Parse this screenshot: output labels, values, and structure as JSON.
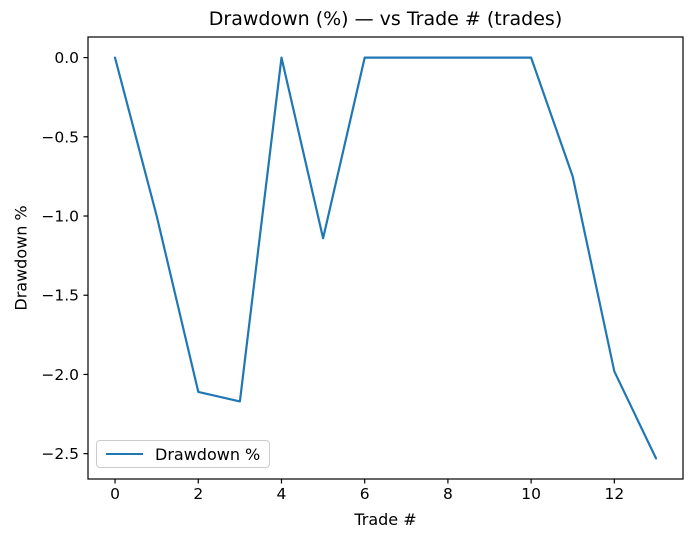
{
  "chart_data": {
    "type": "line",
    "title": "Drawdown (%) — vs Trade # (trades)",
    "xlabel": "Trade #",
    "ylabel": "Drawdown %",
    "x": [
      0,
      1,
      2,
      3,
      4,
      5,
      6,
      7,
      8,
      9,
      10,
      11,
      12,
      13
    ],
    "series": [
      {
        "name": "Drawdown %",
        "color": "#1f77b4",
        "values": [
          0.0,
          -1.0,
          -2.11,
          -2.17,
          0.0,
          -1.14,
          0.0,
          0.0,
          0.0,
          0.0,
          0.0,
          -0.75,
          -1.98,
          -2.53
        ]
      }
    ],
    "xlim": [
      -0.65,
      13.65
    ],
    "ylim": [
      -2.66,
      0.13
    ],
    "xticks": {
      "values": [
        0,
        2,
        4,
        6,
        8,
        10,
        12
      ],
      "labels": [
        "0",
        "2",
        "4",
        "6",
        "8",
        "10",
        "12"
      ]
    },
    "yticks": {
      "values": [
        0,
        -0.5,
        -1.0,
        -1.5,
        -2.0,
        -2.5
      ],
      "labels": [
        "0.0",
        "−0.5",
        "−1.0",
        "−1.5",
        "−2.0",
        "−2.5"
      ]
    },
    "grid": false,
    "legend": {
      "position": "lower left",
      "entries": [
        {
          "label": "Drawdown %",
          "color": "#1f77b4"
        }
      ]
    },
    "axes_color": "#000000",
    "background": "#ffffff"
  }
}
